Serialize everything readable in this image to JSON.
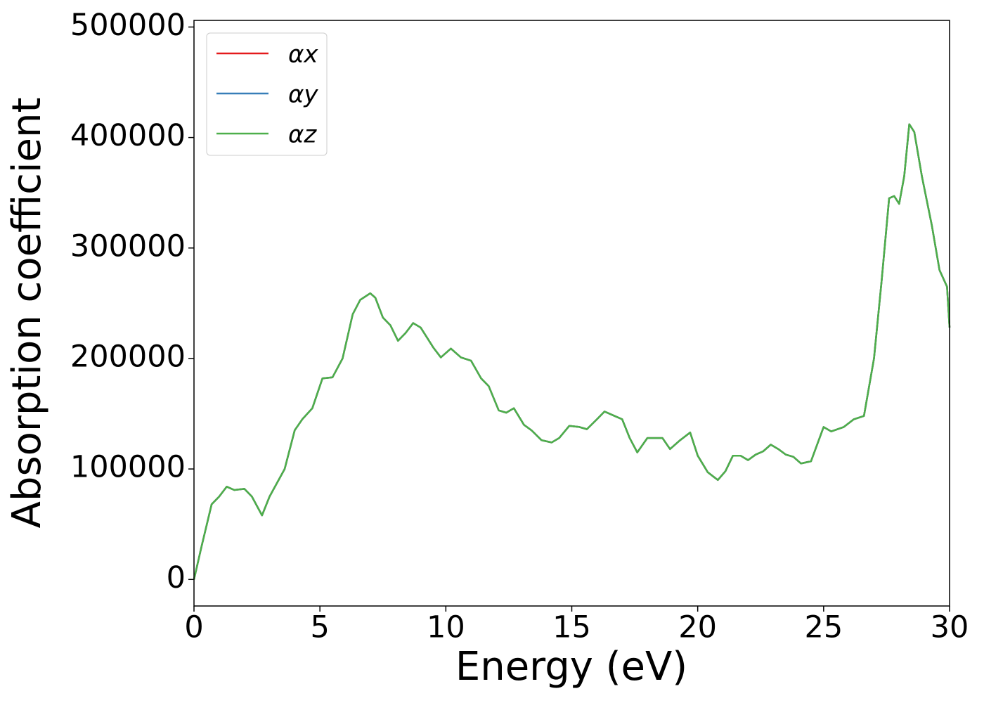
{
  "chart_data": {
    "type": "line",
    "xlabel": "Energy (eV)",
    "ylabel": "Absorption coefficient",
    "x": [
      0,
      0.3,
      0.7,
      1.0,
      1.3,
      1.6,
      2.0,
      2.3,
      2.7,
      3.0,
      3.6,
      4.0,
      4.3,
      4.7,
      5.1,
      5.5,
      5.9,
      6.3,
      6.6,
      7.0,
      7.2,
      7.5,
      7.8,
      8.1,
      8.4,
      8.7,
      9.0,
      9.5,
      9.8,
      10.2,
      10.6,
      11.0,
      11.4,
      11.7,
      12.1,
      12.4,
      12.7,
      13.1,
      13.4,
      13.8,
      14.2,
      14.5,
      14.9,
      15.3,
      15.6,
      16.0,
      16.3,
      16.7,
      17.0,
      17.3,
      17.6,
      18.0,
      18.3,
      18.6,
      18.9,
      19.3,
      19.7,
      20.0,
      20.4,
      20.8,
      21.1,
      21.4,
      21.7,
      22.0,
      22.3,
      22.6,
      22.9,
      23.2,
      23.5,
      23.8,
      24.1,
      24.5,
      25.0,
      25.3,
      25.8,
      26.2,
      26.6,
      27.0,
      27.3,
      27.6,
      27.8,
      28.0,
      28.2,
      28.4,
      28.6,
      28.9,
      29.3,
      29.6,
      29.9,
      30.0
    ],
    "series": [
      {
        "name": "αx",
        "color": "#e41a1c",
        "values": [
          0,
          30000,
          68000,
          75000,
          84000,
          81000,
          82000,
          75000,
          58000,
          75000,
          100000,
          135000,
          145000,
          155000,
          182000,
          183000,
          200000,
          240000,
          253000,
          259000,
          255000,
          237000,
          230000,
          216000,
          223000,
          232000,
          228000,
          210000,
          201000,
          209000,
          201000,
          198000,
          182000,
          175000,
          153000,
          151000,
          155000,
          140000,
          135000,
          126000,
          124000,
          128000,
          139000,
          138000,
          136000,
          145000,
          152000,
          148000,
          145000,
          128000,
          115000,
          128000,
          128000,
          128000,
          118000,
          126000,
          133000,
          112000,
          97000,
          90000,
          98000,
          112000,
          112000,
          108000,
          113000,
          116000,
          122000,
          118000,
          113000,
          111000,
          105000,
          107000,
          138000,
          134000,
          138000,
          145000,
          148000,
          200000,
          270000,
          345000,
          347000,
          340000,
          365000,
          412000,
          405000,
          365000,
          320000,
          280000,
          265000,
          228000
        ]
      },
      {
        "name": "αy",
        "color": "#377eb8",
        "values": [
          0,
          30000,
          68000,
          75000,
          84000,
          81000,
          82000,
          75000,
          58000,
          75000,
          100000,
          135000,
          145000,
          155000,
          182000,
          183000,
          200000,
          240000,
          253000,
          259000,
          255000,
          237000,
          230000,
          216000,
          223000,
          232000,
          228000,
          210000,
          201000,
          209000,
          201000,
          198000,
          182000,
          175000,
          153000,
          151000,
          155000,
          140000,
          135000,
          126000,
          124000,
          128000,
          139000,
          138000,
          136000,
          145000,
          152000,
          148000,
          145000,
          128000,
          115000,
          128000,
          128000,
          128000,
          118000,
          126000,
          133000,
          112000,
          97000,
          90000,
          98000,
          112000,
          112000,
          108000,
          113000,
          116000,
          122000,
          118000,
          113000,
          111000,
          105000,
          107000,
          138000,
          134000,
          138000,
          145000,
          148000,
          200000,
          270000,
          345000,
          347000,
          340000,
          365000,
          412000,
          405000,
          365000,
          320000,
          280000,
          265000,
          228000
        ]
      },
      {
        "name": "αz",
        "color": "#4daf4a",
        "values": [
          0,
          30000,
          68000,
          75000,
          84000,
          81000,
          82000,
          75000,
          58000,
          75000,
          100000,
          135000,
          145000,
          155000,
          182000,
          183000,
          200000,
          240000,
          253000,
          259000,
          255000,
          237000,
          230000,
          216000,
          223000,
          232000,
          228000,
          210000,
          201000,
          209000,
          201000,
          198000,
          182000,
          175000,
          153000,
          151000,
          155000,
          140000,
          135000,
          126000,
          124000,
          128000,
          139000,
          138000,
          136000,
          145000,
          152000,
          148000,
          145000,
          128000,
          115000,
          128000,
          128000,
          128000,
          118000,
          126000,
          133000,
          112000,
          97000,
          90000,
          98000,
          112000,
          112000,
          108000,
          113000,
          116000,
          122000,
          118000,
          113000,
          111000,
          105000,
          107000,
          138000,
          134000,
          138000,
          145000,
          148000,
          200000,
          270000,
          345000,
          347000,
          340000,
          365000,
          412000,
          405000,
          365000,
          320000,
          280000,
          265000,
          228000
        ]
      }
    ],
    "xlim": [
      0,
      30
    ],
    "xticks": [
      0,
      5,
      10,
      15,
      20,
      25,
      30
    ],
    "ylim": [
      -24000,
      506000
    ],
    "yticks": [
      0,
      100000,
      200000,
      300000,
      400000,
      500000
    ],
    "grid": false,
    "legend": "upper left"
  }
}
